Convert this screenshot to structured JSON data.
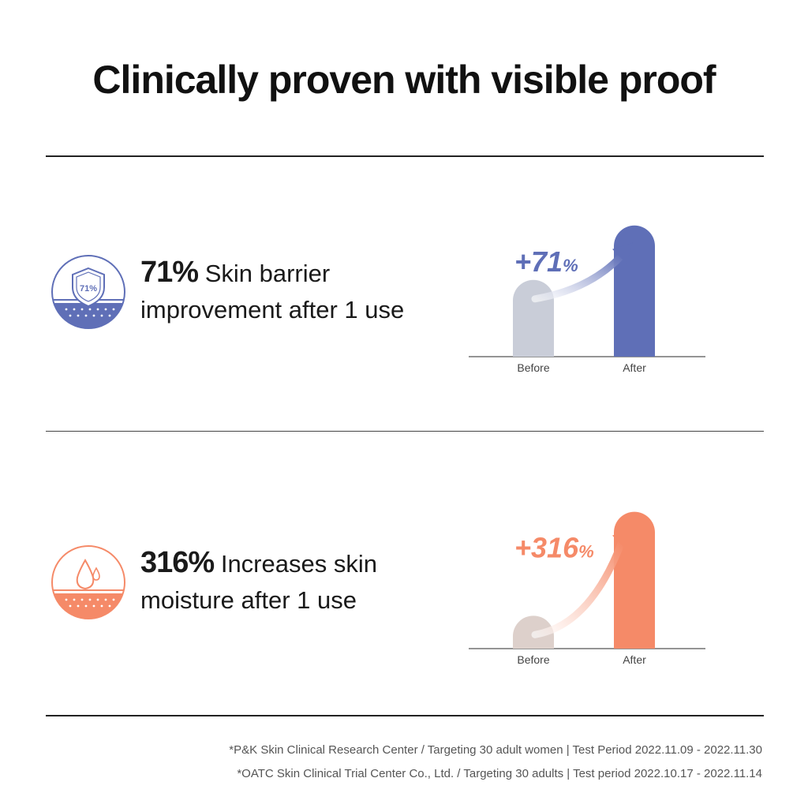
{
  "title": "Clinically proven with visible proof",
  "rows": [
    {
      "badge_icon": "shield-icon",
      "badge_text": "71%",
      "percent": "71%",
      "line1_rest": "Skin barrier",
      "line2": "improvement after 1 use",
      "delta_number": "+71",
      "delta_suffix": "%",
      "color": "#5f6fb7",
      "before_color": "#c9cdd8"
    },
    {
      "badge_icon": "water-drop-icon",
      "percent": "316%",
      "line1_rest": "Increases skin",
      "line2": "moisture after 1 use",
      "delta_number": "+316",
      "delta_suffix": "%",
      "color": "#f58a68",
      "before_color": "#ddd0cb"
    }
  ],
  "chart_data": [
    {
      "type": "bar",
      "categories": [
        "Before",
        "After"
      ],
      "values": [
        1,
        1.71
      ],
      "annotation": "+71%",
      "ylim": [
        0,
        1.8
      ]
    },
    {
      "type": "bar",
      "categories": [
        "Before",
        "After"
      ],
      "values": [
        1,
        4.16
      ],
      "annotation": "+316%",
      "ylim": [
        0,
        4.2
      ]
    }
  ],
  "footnotes": [
    "*P&K Skin Clinical Research Center / Targeting 30 adult women  |  Test Period 2022.11.09 - 2022.11.30",
    "*OATC Skin Clinical Trial Center Co., Ltd. / Targeting 30 adults  |  Test period 2022.10.17 - 2022.11.14"
  ]
}
